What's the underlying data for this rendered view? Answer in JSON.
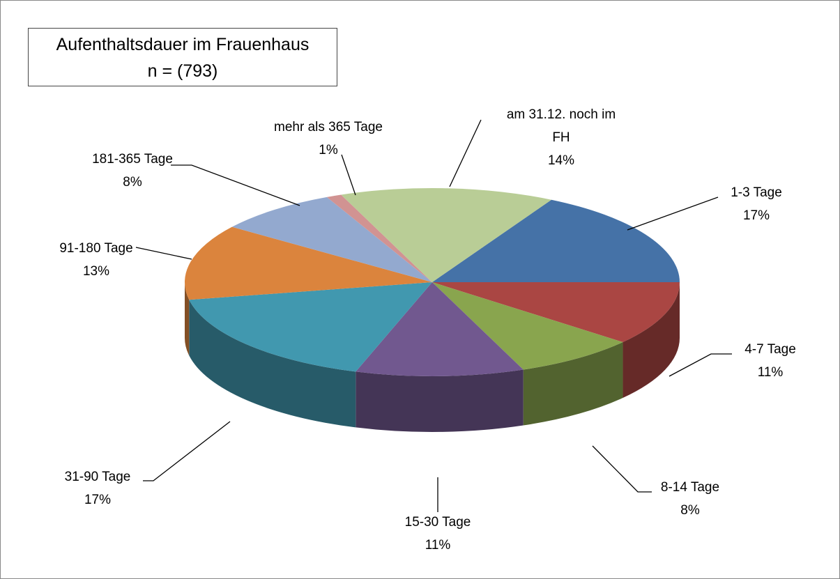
{
  "chart_data": {
    "type": "pie3d",
    "title": "Aufenthaltsdauer im Frauenhaus",
    "subtitle": "n = (793)",
    "categories": [
      "1-3 Tage",
      "4-7 Tage",
      "8-14 Tage",
      "15-30 Tage",
      "31-90 Tage",
      "91-180 Tage",
      "181-365 Tage",
      "mehr als 365 Tage",
      "am 31.12. noch im FH"
    ],
    "values": [
      17,
      11,
      8,
      11,
      17,
      13,
      8,
      1,
      14
    ],
    "value_labels": [
      "17%",
      "11%",
      "8%",
      "11%",
      "17%",
      "13%",
      "8%",
      "1%",
      "14%"
    ],
    "colors": [
      "#4572a7",
      "#aa4643",
      "#89a54e",
      "#71588f",
      "#4198af",
      "#db843d",
      "#93a9cf",
      "#d19392",
      "#b9cd96"
    ]
  }
}
